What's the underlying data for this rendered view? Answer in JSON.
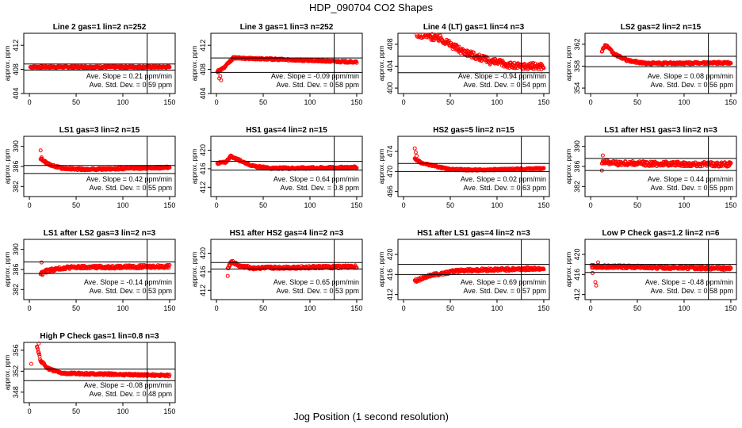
{
  "page": {
    "title": "HDP_090704  CO2 Shapes",
    "xlabel": "Jog Position (1 second resolution)"
  },
  "style": {
    "point_color": "#ff0000",
    "line_color": "#000000",
    "background": "#ffffff"
  },
  "chart_data": [
    {
      "type": "scatter",
      "title": "Line 2 gas=1 lin=2 n=252",
      "ylabel": "approx. ppm",
      "xlim": [
        0,
        150
      ],
      "xticks": [
        0,
        50,
        100,
        150
      ],
      "ylim": [
        404,
        414
      ],
      "yticks": [
        404,
        408,
        412
      ],
      "hlines": [
        408.9,
        407.9
      ],
      "vline": 126,
      "slope_label": "Ave. Slope = ",
      "slope": "0.21",
      "slope_unit": "ppm/min",
      "sd_label": "Ave. Std. Dev. = ",
      "sd": "0.59",
      "sd_unit": "ppm",
      "series": [
        {
          "x_start": 1,
          "x_end": 150,
          "segments": [
            [
              1,
              408.4
            ],
            [
              150,
              408.4
            ]
          ],
          "noise": 0.15
        }
      ]
    },
    {
      "type": "scatter",
      "title": "Line 3 gas=1 lin=3 n=252",
      "ylabel": "approx. ppm",
      "xlim": [
        0,
        150
      ],
      "xticks": [
        0,
        50,
        100,
        150
      ],
      "ylim": [
        404,
        414
      ],
      "yticks": [
        404,
        408,
        412
      ],
      "hlines": [
        409.9,
        407.5
      ],
      "vline": 126,
      "slope_label": "Ave. Slope = ",
      "slope": "-0.09",
      "slope_unit": "ppm/min",
      "sd_label": "Ave. Std. Dev. = ",
      "sd": "0.58",
      "sd_unit": "ppm",
      "series": [
        {
          "x_start": 1,
          "x_end": 150,
          "segments": [
            [
              1,
              407.6
            ],
            [
              8,
              408.3
            ],
            [
              18,
              409.9
            ],
            [
              60,
              409.7
            ],
            [
              150,
              409.2
            ]
          ],
          "noise": 0.15
        },
        {
          "points": [
            [
              3,
              406.5
            ],
            [
              4,
              406.9
            ],
            [
              5,
              406.2
            ],
            [
              2,
              407.9
            ]
          ]
        }
      ]
    },
    {
      "type": "scatter",
      "title": "Line 4 (LT) gas=1 lin=4 n=3",
      "ylabel": "approx. ppm",
      "xlim": [
        0,
        150
      ],
      "xticks": [
        0,
        50,
        100,
        150
      ],
      "ylim": [
        399,
        410
      ],
      "yticks": [
        400,
        404,
        408
      ],
      "hlines": [
        405.8,
        402.8
      ],
      "vline": 126,
      "slope_label": "Ave. Slope = ",
      "slope": "-0.94",
      "slope_unit": "ppm/min",
      "sd_label": "Ave. Std. Dev. = ",
      "sd": "0.54",
      "sd_unit": "ppm",
      "series": [
        {
          "x_start": 12,
          "x_end": 150,
          "segments": [
            [
              12,
              410
            ],
            [
              40,
              409
            ],
            [
              60,
              407
            ],
            [
              90,
              405
            ],
            [
              120,
              404
            ],
            [
              150,
              404
            ]
          ],
          "noise": 0.6
        }
      ]
    },
    {
      "type": "scatter",
      "title": "LS2 gas=2 lin=2 n=15",
      "ylabel": "approx. ppm",
      "xlim": [
        0,
        150
      ],
      "xticks": [
        0,
        50,
        100,
        150
      ],
      "ylim": [
        353,
        364
      ],
      "yticks": [
        354,
        358,
        362
      ],
      "hlines": [
        359.8,
        357.9
      ],
      "vline": 126,
      "slope_label": "Ave. Slope = ",
      "slope": "0.08",
      "slope_unit": "ppm/min",
      "sd_label": "Ave. Std. Dev. = ",
      "sd": "0.56",
      "sd_unit": "ppm",
      "series": [
        {
          "x_start": 12,
          "x_end": 150,
          "segments": [
            [
              12,
              360.8
            ],
            [
              16,
              361.9
            ],
            [
              25,
              360.2
            ],
            [
              40,
              359
            ],
            [
              60,
              358.5
            ],
            [
              150,
              358.6
            ]
          ],
          "noise": 0.2
        }
      ]
    },
    {
      "type": "scatter",
      "title": "LS1 gas=3 lin=2 n=15",
      "ylabel": "approx. ppm",
      "xlim": [
        0,
        150
      ],
      "xticks": [
        0,
        50,
        100,
        150
      ],
      "ylim": [
        380,
        392
      ],
      "yticks": [
        382,
        386,
        390
      ],
      "hlines": [
        386.2,
        384.6
      ],
      "vline": 126,
      "slope_label": "Ave. Slope = ",
      "slope": "0.42",
      "slope_unit": "ppm/min",
      "sd_label": "Ave. Std. Dev. = ",
      "sd": "0.55",
      "sd_unit": "ppm",
      "series": [
        {
          "x_start": 12,
          "x_end": 150,
          "segments": [
            [
              12,
              387.5
            ],
            [
              20,
              386.5
            ],
            [
              35,
              385.6
            ],
            [
              60,
              385.4
            ],
            [
              150,
              385.8
            ]
          ],
          "noise": 0.2
        },
        {
          "points": [
            [
              12,
              389.2
            ],
            [
              13,
              387.8
            ]
          ]
        }
      ]
    },
    {
      "type": "scatter",
      "title": "HS1 gas=4 lin=2 n=15",
      "ylabel": "approx. ppm",
      "xlim": [
        0,
        150
      ],
      "xticks": [
        0,
        50,
        100,
        150
      ],
      "ylim": [
        410,
        423
      ],
      "yticks": [
        412,
        416,
        420
      ],
      "hlines": [
        417.6,
        415.7
      ],
      "vline": 126,
      "slope_label": "Ave. Slope = ",
      "slope": "0.64",
      "slope_unit": "ppm/min",
      "sd_label": "Ave. Std. Dev. = ",
      "sd": "0.8",
      "sd_unit": "ppm",
      "series": [
        {
          "x_start": 1,
          "x_end": 150,
          "segments": [
            [
              1,
              417.2
            ],
            [
              10,
              417.4
            ],
            [
              15,
              418.7
            ],
            [
              25,
              417.8
            ],
            [
              40,
              416.5
            ],
            [
              60,
              416.1
            ],
            [
              150,
              416.3
            ]
          ],
          "noise": 0.2
        }
      ]
    },
    {
      "type": "scatter",
      "title": "HS2 gas=5 lin=2 n=15",
      "ylabel": "approx. ppm",
      "xlim": [
        0,
        150
      ],
      "xticks": [
        0,
        50,
        100,
        150
      ],
      "ylim": [
        465,
        477
      ],
      "yticks": [
        466,
        470,
        474
      ],
      "hlines": [
        471.6,
        470
      ],
      "vline": 126,
      "slope_label": "Ave. Slope = ",
      "slope": "0.02",
      "slope_unit": "ppm/min",
      "sd_label": "Ave. Std. Dev. = ",
      "sd": "0.63",
      "sd_unit": "ppm",
      "series": [
        {
          "x_start": 12,
          "x_end": 150,
          "segments": [
            [
              12,
              472.5
            ],
            [
              20,
              471.6
            ],
            [
              35,
              471
            ],
            [
              50,
              470.4
            ],
            [
              80,
              470.3
            ],
            [
              150,
              470.6
            ]
          ],
          "noise": 0.15
        },
        {
          "points": [
            [
              12,
              474.6
            ],
            [
              13,
              473.8
            ],
            [
              14,
              473.1
            ]
          ]
        }
      ]
    },
    {
      "type": "scatter",
      "title": "LS1 after HS1 gas=3 lin=2 n=3",
      "ylabel": "approx. ppm",
      "xlim": [
        0,
        150
      ],
      "xticks": [
        0,
        50,
        100,
        150
      ],
      "ylim": [
        380,
        392
      ],
      "yticks": [
        382,
        386,
        390
      ],
      "hlines": [
        387.6,
        385.2
      ],
      "vline": 126,
      "slope_label": "Ave. Slope = ",
      "slope": "0.44",
      "slope_unit": "ppm/min",
      "sd_label": "Ave. Std. Dev. = ",
      "sd": "0.55",
      "sd_unit": "ppm",
      "series": [
        {
          "x_start": 12,
          "x_end": 150,
          "segments": [
            [
              12,
              387
            ],
            [
              30,
              386.6
            ],
            [
              150,
              386.4
            ]
          ],
          "noise": 0.45
        },
        {
          "points": [
            [
              12,
              385.2
            ],
            [
              13,
              388.2
            ]
          ]
        }
      ]
    },
    {
      "type": "scatter",
      "title": "LS1 after LS2 gas=3 lin=2 n=3",
      "ylabel": "approx. ppm",
      "xlim": [
        0,
        150
      ],
      "xticks": [
        0,
        50,
        100,
        150
      ],
      "ylim": [
        380,
        392
      ],
      "yticks": [
        382,
        386,
        390
      ],
      "hlines": [
        387.5,
        385.2
      ],
      "vline": 126,
      "slope_label": "Ave. Slope = ",
      "slope": "-0.14",
      "slope_unit": "ppm/min",
      "sd_label": "Ave. Std. Dev. = ",
      "sd": "0.53",
      "sd_unit": "ppm",
      "series": [
        {
          "x_start": 12,
          "x_end": 150,
          "segments": [
            [
              12,
              385.2
            ],
            [
              20,
              385.8
            ],
            [
              40,
              386.4
            ],
            [
              150,
              386.6
            ]
          ],
          "noise": 0.3
        },
        {
          "points": [
            [
              13,
              387.4
            ],
            [
              14,
              384.9
            ]
          ]
        }
      ]
    },
    {
      "type": "scatter",
      "title": "HS1 after HS2 gas=4 lin=2 n=3",
      "ylabel": "approx. ppm",
      "xlim": [
        0,
        150
      ],
      "xticks": [
        0,
        50,
        100,
        150
      ],
      "ylim": [
        410,
        423
      ],
      "yticks": [
        412,
        416,
        420
      ],
      "hlines": [
        418,
        416.6
      ],
      "vline": 126,
      "slope_label": "Ave. Slope = ",
      "slope": "0.65",
      "slope_unit": "ppm/min",
      "sd_label": "Ave. Std. Dev. = ",
      "sd": "0.53",
      "sd_unit": "ppm",
      "series": [
        {
          "x_start": 12,
          "x_end": 150,
          "segments": [
            [
              12,
              416.8
            ],
            [
              16,
              418.2
            ],
            [
              25,
              417.2
            ],
            [
              40,
              416.8
            ],
            [
              150,
              417.1
            ]
          ],
          "noise": 0.3
        },
        {
          "points": [
            [
              12,
              415.1
            ]
          ]
        }
      ]
    },
    {
      "type": "scatter",
      "title": "HS1 after LS1 gas=4 lin=2 n=3",
      "ylabel": "approx. ppm",
      "xlim": [
        0,
        150
      ],
      "xticks": [
        0,
        50,
        100,
        150
      ],
      "ylim": [
        411,
        423
      ],
      "yticks": [
        412,
        416,
        420
      ],
      "hlines": [
        418,
        416
      ],
      "vline": 126,
      "slope_label": "Ave. Slope = ",
      "slope": "0.69",
      "slope_unit": "ppm/min",
      "sd_label": "Ave. Std. Dev. = ",
      "sd": "0.57",
      "sd_unit": "ppm",
      "series": [
        {
          "x_start": 12,
          "x_end": 150,
          "segments": [
            [
              12,
              414.7
            ],
            [
              30,
              415.9
            ],
            [
              60,
              416.8
            ],
            [
              150,
              417.2
            ]
          ],
          "noise": 0.3
        }
      ]
    },
    {
      "type": "scatter",
      "title": "Low P Check gas=1.2 lin=2 n=6",
      "ylabel": "approx. ppm",
      "xlim": [
        0,
        150
      ],
      "xticks": [
        0,
        50,
        100,
        150
      ],
      "ylim": [
        411,
        423
      ],
      "yticks": [
        412,
        416,
        420
      ],
      "hlines": [
        418,
        416.4
      ],
      "vline": 126,
      "slope_label": "Ave. Slope = ",
      "slope": "-0.48",
      "slope_unit": "ppm/min",
      "sd_label": "Ave. Std. Dev. = ",
      "sd": "0.58",
      "sd_unit": "ppm",
      "series": [
        {
          "x_start": 1,
          "x_end": 150,
          "segments": [
            [
              1,
              417.6
            ],
            [
              150,
              417.2
            ]
          ],
          "noise": 0.3
        },
        {
          "points": [
            [
              5,
              414.5
            ],
            [
              6,
              413.8
            ],
            [
              2,
              416.3
            ],
            [
              8,
              418.4
            ]
          ]
        }
      ]
    },
    {
      "type": "scatter",
      "title": "High P Check gas=1 lin=0.8 n=3",
      "ylabel": "approx. ppm",
      "xlim": [
        0,
        150
      ],
      "xticks": [
        0,
        50,
        100,
        150
      ],
      "ylim": [
        346,
        357.5
      ],
      "yticks": [
        348,
        352,
        356
      ],
      "hlines": [
        352.4,
        350.2
      ],
      "vline": 126,
      "slope_label": "Ave. Slope = ",
      "slope": "-0.08",
      "slope_unit": "ppm/min",
      "sd_label": "Ave. Std. Dev. = ",
      "sd": "0.48",
      "sd_unit": "ppm",
      "series": [
        {
          "x_start": 8,
          "x_end": 150,
          "segments": [
            [
              8,
              356.8
            ],
            [
              12,
              354
            ],
            [
              20,
              352.5
            ],
            [
              35,
              351.6
            ],
            [
              150,
              351.2
            ]
          ],
          "noise": 0.2
        },
        {
          "points": [
            [
              2,
              353.4
            ],
            [
              10,
              357.3
            ]
          ]
        }
      ]
    }
  ]
}
